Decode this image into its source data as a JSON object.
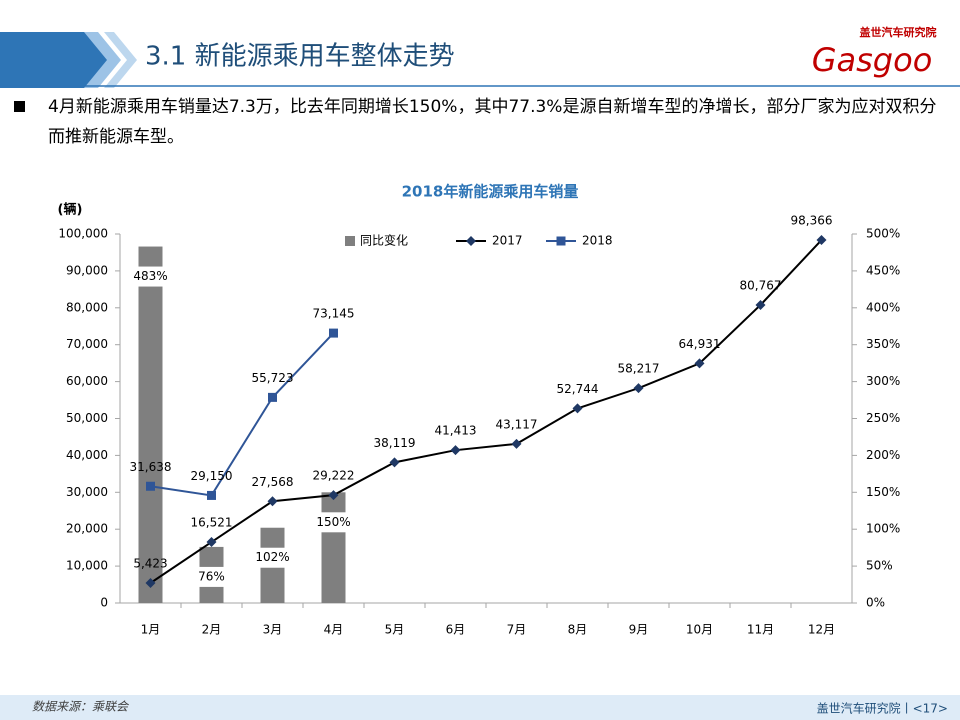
{
  "header": {
    "title": "3.1 新能源乘用车整体走势",
    "logo_cn": "盖世汽车研究院",
    "logo_en": "Gasgoo"
  },
  "bullet": "4月新能源乘用车销量达7.3万，比去年同期增长150%，其中77.3%是源自新增车型的净增长，部分厂家为应对双积分而推新能源车型。",
  "chart_data": {
    "type": "combo",
    "title": "2018年新能源乘用车销量",
    "y_label": "(辆)",
    "categories": [
      "1月",
      "2月",
      "3月",
      "4月",
      "5月",
      "6月",
      "7月",
      "8月",
      "9月",
      "10月",
      "11月",
      "12月"
    ],
    "ylim": [
      0,
      100000
    ],
    "yticks": [
      0,
      {
        "value": 10000,
        "label": "10,000"
      },
      {
        "value": 20000,
        "label": "20,000"
      },
      {
        "value": 30000,
        "label": "30,000"
      },
      {
        "value": 40000,
        "label": "40,000"
      },
      {
        "value": 50000,
        "label": "50,000"
      },
      {
        "value": 60000,
        "label": "60,000"
      },
      {
        "value": 70000,
        "label": "70,000"
      },
      {
        "value": 80000,
        "label": "80,000"
      },
      {
        "value": 90000,
        "label": "90,000"
      },
      {
        "value": 100000,
        "label": "100,000"
      }
    ],
    "y2lim": [
      0,
      500
    ],
    "y2ticks": [
      {
        "value": 0,
        "label": "0%"
      },
      {
        "value": 50,
        "label": "50%"
      },
      {
        "value": 100,
        "label": "100%"
      },
      {
        "value": 150,
        "label": "150%"
      },
      {
        "value": 200,
        "label": "200%"
      },
      {
        "value": 250,
        "label": "250%"
      },
      {
        "value": 300,
        "label": "300%"
      },
      {
        "value": 350,
        "label": "350%"
      },
      {
        "value": 400,
        "label": "400%"
      },
      {
        "value": 450,
        "label": "450%"
      },
      {
        "value": 500,
        "label": "500%"
      }
    ],
    "legend": "top",
    "series": [
      {
        "name": "同比变化",
        "type": "bar",
        "axis": "y2",
        "color": "#7f7f7f",
        "values": [
          483,
          76,
          102,
          150,
          null,
          null,
          null,
          null,
          null,
          null,
          null,
          null
        ],
        "value_labels": [
          "483%",
          "76%",
          "102%",
          "150%",
          null,
          null,
          null,
          null,
          null,
          null,
          null,
          null
        ]
      },
      {
        "name": "2017",
        "type": "line",
        "marker": "diamond",
        "color": "#000000",
        "marker_color": "#1f3864",
        "values": [
          5423,
          16521,
          27568,
          29222,
          38119,
          41413,
          43117,
          52744,
          58217,
          64931,
          80767,
          98366
        ],
        "value_labels": [
          "5,423",
          "16,521",
          "27,568",
          "29,222",
          "38,119",
          "41,413",
          "43,117",
          "52,744",
          "58,217",
          "64,931",
          "80,767",
          "98,366"
        ]
      },
      {
        "name": "2018",
        "type": "line",
        "marker": "square",
        "color": "#2f5597",
        "marker_color": "#2f5597",
        "values": [
          31638,
          29150,
          55723,
          73145,
          null,
          null,
          null,
          null,
          null,
          null,
          null,
          null
        ],
        "value_labels": [
          "31,638",
          "29,150",
          "55,723",
          "73,145",
          null,
          null,
          null,
          null,
          null,
          null,
          null,
          null
        ]
      }
    ]
  },
  "footer": {
    "source": "数据来源：乘联会",
    "org": "盖世汽车研究院丨<17>"
  }
}
